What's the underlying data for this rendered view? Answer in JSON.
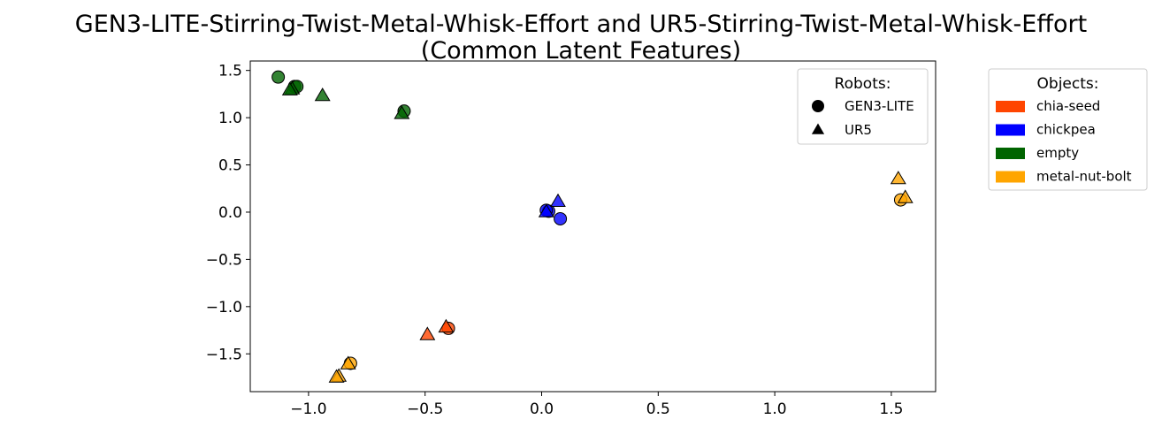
{
  "chart_data": {
    "type": "scatter",
    "title": "GEN3-LITE-Stirring-Twist-Metal-Whisk-Effort and UR5-Stirring-Twist-Metal-Whisk-Effort",
    "subtitle": "(Common Latent Features)",
    "xlabel": "",
    "ylabel": "",
    "xlim": [
      -1.25,
      1.69
    ],
    "ylim": [
      -1.9,
      1.6
    ],
    "grid": false,
    "xticks": [
      -1.0,
      -0.5,
      0.0,
      0.5,
      1.0,
      1.5
    ],
    "xtick_labels": [
      "−1.0",
      "−0.5",
      "0.0",
      "0.5",
      "1.0",
      "1.5"
    ],
    "yticks": [
      1.5,
      1.0,
      0.5,
      0.0,
      -0.5,
      -1.0,
      -1.5
    ],
    "ytick_labels": [
      "1.5",
      "1.0",
      "0.5",
      "0.0",
      "−0.5",
      "−1.0",
      "−1.5"
    ],
    "robots_legend": {
      "title": "Robots:",
      "placement": "top-right-inside",
      "entries": [
        {
          "name": "GEN3-LITE",
          "marker": "circle"
        },
        {
          "name": "UR5",
          "marker": "triangle"
        }
      ]
    },
    "objects_legend": {
      "title": "Objects:",
      "placement": "outside-right",
      "entries": [
        {
          "name": "chia-seed",
          "color": "#ff4500"
        },
        {
          "name": "chickpea",
          "color": "#0000ff"
        },
        {
          "name": "empty",
          "color": "#006400"
        },
        {
          "name": "metal-nut-bolt",
          "color": "#ffa500"
        }
      ]
    },
    "points": [
      {
        "x": -1.13,
        "y": 1.43,
        "robot": "GEN3-LITE",
        "object": "empty"
      },
      {
        "x": -1.06,
        "y": 1.33,
        "robot": "GEN3-LITE",
        "object": "empty"
      },
      {
        "x": -1.05,
        "y": 1.33,
        "robot": "GEN3-LITE",
        "object": "empty"
      },
      {
        "x": -0.59,
        "y": 1.07,
        "robot": "GEN3-LITE",
        "object": "empty"
      },
      {
        "x": -1.07,
        "y": 1.3,
        "robot": "UR5",
        "object": "empty"
      },
      {
        "x": -1.08,
        "y": 1.29,
        "robot": "UR5",
        "object": "empty"
      },
      {
        "x": -0.94,
        "y": 1.23,
        "robot": "UR5",
        "object": "empty"
      },
      {
        "x": -0.6,
        "y": 1.04,
        "robot": "UR5",
        "object": "empty"
      },
      {
        "x": 0.03,
        "y": 0.01,
        "robot": "GEN3-LITE",
        "object": "chickpea"
      },
      {
        "x": 0.02,
        "y": 0.02,
        "robot": "GEN3-LITE",
        "object": "chickpea"
      },
      {
        "x": 0.08,
        "y": -0.07,
        "robot": "GEN3-LITE",
        "object": "chickpea"
      },
      {
        "x": 0.02,
        "y": 0.0,
        "robot": "UR5",
        "object": "chickpea"
      },
      {
        "x": 0.07,
        "y": 0.11,
        "robot": "UR5",
        "object": "chickpea"
      },
      {
        "x": 1.54,
        "y": 0.13,
        "robot": "GEN3-LITE",
        "object": "metal-nut-bolt"
      },
      {
        "x": 1.53,
        "y": 0.35,
        "robot": "UR5",
        "object": "metal-nut-bolt"
      },
      {
        "x": 1.56,
        "y": 0.15,
        "robot": "UR5",
        "object": "metal-nut-bolt"
      },
      {
        "x": -0.4,
        "y": -1.23,
        "robot": "GEN3-LITE",
        "object": "chia-seed"
      },
      {
        "x": -0.41,
        "y": -1.22,
        "robot": "UR5",
        "object": "chia-seed"
      },
      {
        "x": -0.49,
        "y": -1.3,
        "robot": "UR5",
        "object": "chia-seed"
      },
      {
        "x": -0.82,
        "y": -1.6,
        "robot": "GEN3-LITE",
        "object": "metal-nut-bolt"
      },
      {
        "x": -0.83,
        "y": -1.61,
        "robot": "UR5",
        "object": "metal-nut-bolt"
      },
      {
        "x": -0.87,
        "y": -1.74,
        "robot": "UR5",
        "object": "metal-nut-bolt"
      },
      {
        "x": -0.88,
        "y": -1.75,
        "robot": "UR5",
        "object": "metal-nut-bolt"
      }
    ]
  }
}
